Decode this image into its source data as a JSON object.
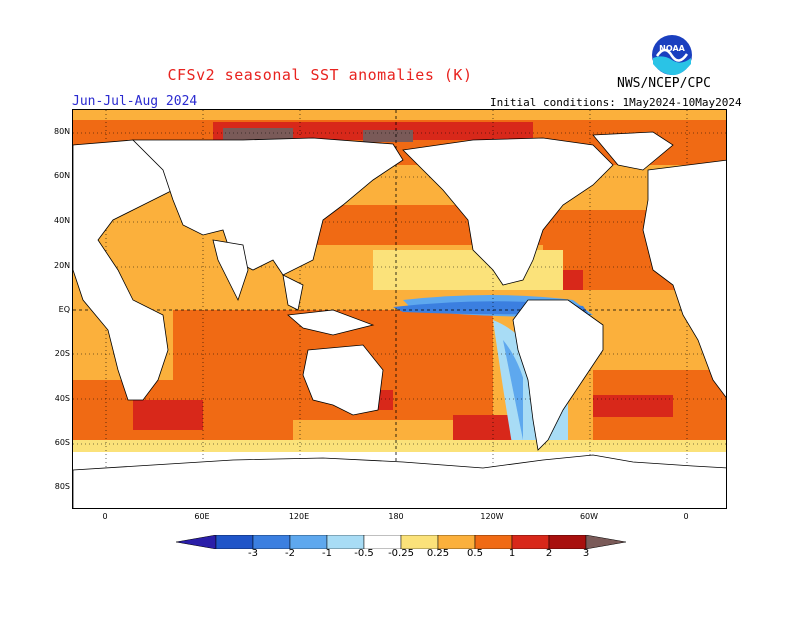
{
  "header": {
    "title": "CFSv2 seasonal SST anomalies (K)",
    "season": "Jun-Jul-Aug 2024",
    "initial_conditions": "Initial conditions: 1May2024-10May2024",
    "agency": "NWS/NCEP/CPC",
    "logo": "NOAA"
  },
  "map": {
    "projection": "cylindrical equidistant, 0 to 360 longitude",
    "lat_ticks": [
      "80N",
      "60N",
      "40N",
      "20N",
      "EQ",
      "20S",
      "40S",
      "60S",
      "80S"
    ],
    "lon_ticks": [
      "0",
      "60E",
      "120E",
      "180",
      "120W",
      "60W",
      "0"
    ],
    "reference_lines": [
      "equator",
      "dateline"
    ],
    "grid": true
  },
  "colorbar": {
    "levels": [
      "-3",
      "-2",
      "-1",
      "-0.5",
      "-0.25",
      "0.25",
      "0.5",
      "1",
      "2",
      "3"
    ],
    "colors": [
      "#2a1ea8",
      "#1f55c8",
      "#3b7fe0",
      "#5ea8ee",
      "#a8dcf5",
      "#ffffff",
      "#fbe27a",
      "#fbb03c",
      "#f06a14",
      "#d8281a",
      "#a8100e",
      "#7a5a58"
    ],
    "units": "K"
  },
  "colors": {
    "land": "#ffffff",
    "title_red": "#e8231f",
    "season_blue": "#2b2bd0"
  }
}
